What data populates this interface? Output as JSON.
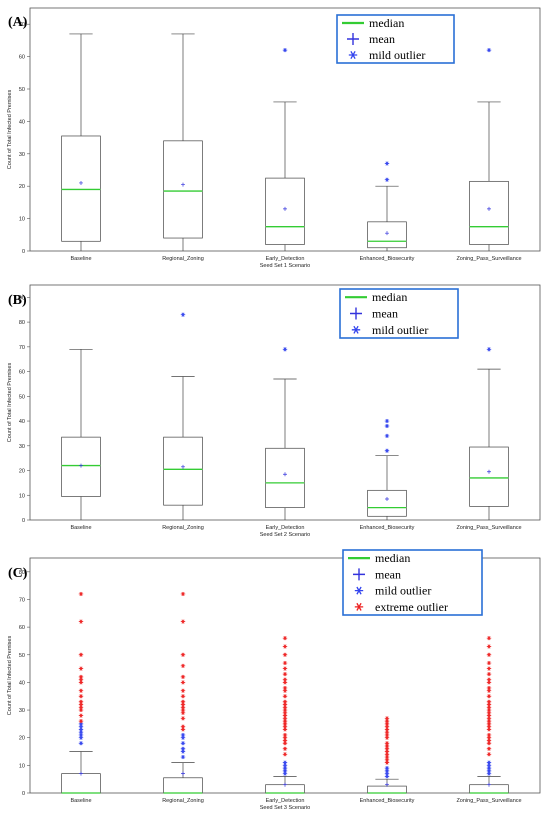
{
  "chart_data": [
    {
      "type": "box",
      "panel_label": "(A)",
      "xlabel": "Seed Set 1 Scenario",
      "ylabel": "Count of Total Infected Premises",
      "ylim": [
        0,
        75
      ],
      "yticks": [
        0,
        10,
        20,
        30,
        40,
        50,
        60,
        70
      ],
      "legend": [
        "median",
        "mean",
        "mild outlier"
      ],
      "legend_position": "top-right",
      "categories": [
        "Baseline",
        "Regional_Zoning",
        "Early_Detection",
        "Enhanced_Biosecurity",
        "Zoning_Pass_Surveillance"
      ],
      "boxes": [
        {
          "min": 0,
          "q1": 3,
          "median": 19,
          "q3": 35.5,
          "max": 67,
          "mean": 21,
          "mild": [],
          "extreme": []
        },
        {
          "min": 0,
          "q1": 4,
          "median": 18.5,
          "q3": 34,
          "max": 67,
          "mean": 20.5,
          "mild": [],
          "extreme": []
        },
        {
          "min": 0,
          "q1": 2,
          "median": 7.5,
          "q3": 22.5,
          "max": 46,
          "mean": 13,
          "mild": [
            62
          ],
          "extreme": []
        },
        {
          "min": 0,
          "q1": 1,
          "median": 3,
          "q3": 9,
          "max": 20,
          "mean": 5.5,
          "mild": [
            22,
            27
          ],
          "extreme": []
        },
        {
          "min": 0,
          "q1": 2,
          "median": 7.5,
          "q3": 21.5,
          "max": 46,
          "mean": 13,
          "mild": [
            62
          ],
          "extreme": []
        }
      ]
    },
    {
      "type": "box",
      "panel_label": "(B)",
      "xlabel": "Seed Set 2 Scenario",
      "ylabel": "Count of Total Infected Premises",
      "ylim": [
        0,
        95
      ],
      "yticks": [
        0,
        10,
        20,
        30,
        40,
        50,
        60,
        70,
        80,
        90
      ],
      "legend": [
        "median",
        "mean",
        "mild outlier"
      ],
      "legend_position": "top-right",
      "categories": [
        "Baseline",
        "Regional_Zoning",
        "Early_Detection",
        "Enhanced_Biosecurity",
        "Zoning_Pass_Surveillance"
      ],
      "boxes": [
        {
          "min": 0,
          "q1": 9.5,
          "median": 22,
          "q3": 33.5,
          "max": 69,
          "mean": 22,
          "mild": [],
          "extreme": []
        },
        {
          "min": 0,
          "q1": 6,
          "median": 20.5,
          "q3": 33.5,
          "max": 58,
          "mean": 21.5,
          "mild": [
            83
          ],
          "extreme": []
        },
        {
          "min": 0,
          "q1": 5,
          "median": 15,
          "q3": 29,
          "max": 57,
          "mean": 18.5,
          "mild": [
            69
          ],
          "extreme": []
        },
        {
          "min": 0,
          "q1": 1.5,
          "median": 5,
          "q3": 12,
          "max": 26,
          "mean": 8.5,
          "mild": [
            28,
            34,
            38,
            40
          ],
          "extreme": []
        },
        {
          "min": 0,
          "q1": 5.5,
          "median": 17,
          "q3": 29.5,
          "max": 61,
          "mean": 19.5,
          "mild": [
            69
          ],
          "extreme": []
        }
      ]
    },
    {
      "type": "box",
      "panel_label": "(C)",
      "xlabel": "Seed Set 3 Scenario",
      "ylabel": "Count of Total Infected Premises",
      "ylim": [
        0,
        85
      ],
      "yticks": [
        0,
        10,
        20,
        30,
        40,
        50,
        60,
        70,
        80
      ],
      "legend": [
        "median",
        "mean",
        "mild outlier",
        "extreme outlier"
      ],
      "legend_position": "top-right",
      "categories": [
        "Baseline",
        "Regional_Zoning",
        "Early_Detection",
        "Enhanced_Biosecurity",
        "Zoning_Pass_Surveillance"
      ],
      "boxes": [
        {
          "min": 0,
          "q1": 0,
          "median": 0,
          "q3": 7,
          "max": 15,
          "mean": 7,
          "mild": [
            18,
            20,
            21,
            22,
            23,
            24,
            25
          ],
          "extreme": [
            26,
            28,
            30,
            31,
            32,
            33,
            35,
            37,
            40,
            41,
            42,
            45,
            50,
            62,
            72
          ]
        },
        {
          "min": 0,
          "q1": 0,
          "median": 0,
          "q3": 5.5,
          "max": 11,
          "mean": 7,
          "mild": [
            13,
            15,
            16,
            18,
            20,
            21
          ],
          "extreme": [
            23,
            24,
            27,
            29,
            30,
            31,
            32,
            33,
            35,
            37,
            40,
            42,
            46,
            50,
            62,
            72
          ]
        },
        {
          "min": 0,
          "q1": 0,
          "median": 0,
          "q3": 3,
          "max": 6,
          "mean": 3,
          "mild": [
            7,
            8,
            9,
            10,
            11
          ],
          "extreme": [
            14,
            16,
            18,
            19,
            20,
            21,
            23,
            24,
            25,
            26,
            27,
            28,
            29,
            30,
            31,
            32,
            33,
            35,
            37,
            38,
            40,
            41,
            43,
            45,
            47,
            50,
            53,
            56
          ]
        },
        {
          "min": 0,
          "q1": 0,
          "median": 0,
          "q3": 2.5,
          "max": 5,
          "mean": 3,
          "mild": [
            6,
            7,
            8,
            9
          ],
          "extreme": [
            11,
            12,
            13,
            14,
            15,
            16,
            17,
            18,
            20,
            21,
            22,
            23,
            24,
            25,
            26,
            27
          ]
        },
        {
          "min": 0,
          "q1": 0,
          "median": 0,
          "q3": 3,
          "max": 6,
          "mean": 3,
          "mild": [
            7,
            8,
            9,
            10,
            11
          ],
          "extreme": [
            14,
            16,
            18,
            19,
            20,
            21,
            23,
            24,
            25,
            26,
            27,
            28,
            29,
            30,
            31,
            32,
            33,
            35,
            37,
            38,
            40,
            41,
            43,
            45,
            47,
            50,
            53,
            56
          ]
        }
      ]
    }
  ],
  "colors": {
    "median": "#33cc33",
    "mean": "#3333dd",
    "mild_outlier": "#3344ee",
    "extreme_outlier": "#ee2222",
    "legend_border": "#2a6fd6",
    "box": "#444444"
  }
}
